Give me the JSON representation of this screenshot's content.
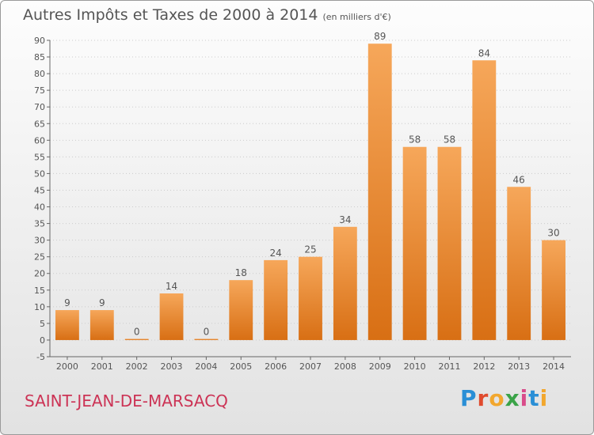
{
  "header": {
    "title": "Autres Impôts et Taxes de 2000 à 2014",
    "subtitle": "(en milliers d'€)"
  },
  "footer": {
    "commune": "SAINT-JEAN-DE-MARSACQ",
    "logo_letters": [
      "P",
      "r",
      "o",
      "x",
      "i",
      "t",
      "i"
    ]
  },
  "colors": {
    "bar_light": "#f6a75a",
    "bar_dark": "#d86f14",
    "commune": "#cc3355",
    "text": "#555555",
    "grid": "#cccccc"
  },
  "chart_data": {
    "type": "bar",
    "categories": [
      "2000",
      "2001",
      "2002",
      "2003",
      "2004",
      "2005",
      "2006",
      "2007",
      "2008",
      "2009",
      "2010",
      "2011",
      "2012",
      "2013",
      "2014"
    ],
    "values": [
      9,
      9,
      0,
      14,
      0,
      18,
      24,
      25,
      34,
      89,
      58,
      58,
      84,
      46,
      30
    ],
    "title": "Autres Impôts et Taxes de 2000 à 2014",
    "subtitle": "(en milliers d'€)",
    "ylim": [
      -5,
      90
    ],
    "yticks": [
      -5,
      0,
      5,
      10,
      15,
      20,
      25,
      30,
      35,
      40,
      45,
      50,
      55,
      60,
      65,
      70,
      75,
      80,
      85,
      90
    ],
    "grid": true,
    "data_labels": true
  }
}
